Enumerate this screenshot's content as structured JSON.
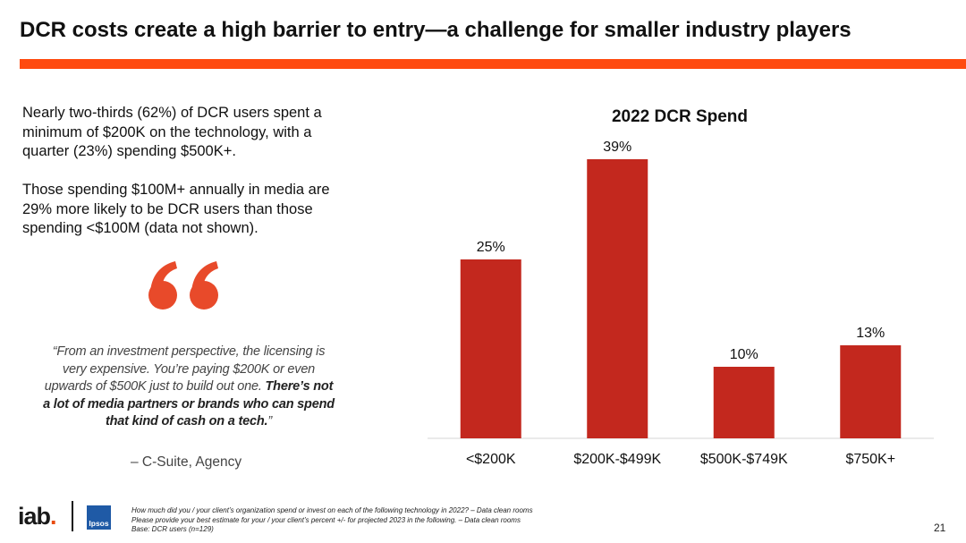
{
  "header": {
    "title": "DCR costs create a high barrier to entry—a challenge for smaller industry players"
  },
  "colors": {
    "accent": "#FF4A0F",
    "bar": "#C3281E",
    "quote_mark": "#E84A2A"
  },
  "left": {
    "paragraph1": "Nearly two-thirds (62%) of DCR users spent a minimum  of $200K on the technology, with a quarter (23%) spending  $500K+.",
    "paragraph2": "Those spending $100M+ annually in media are 29% more likely to be DCR users than those spending <$100M (data not shown).",
    "quote_icon": "quote-mark-icon",
    "quote_part1": "“From an investment perspective, the licensing is very expensive. You’re paying $200K or even upwards of $500K just to build out one. ",
    "quote_part2": "There’s not a lot of media partners or brands who can spend that kind of cash on a tech.",
    "quote_close": "”",
    "attribution": "– C-Suite, Agency"
  },
  "chart_data": {
    "type": "bar",
    "title": "2022 DCR Spend",
    "categories": [
      "<$200K",
      "$200K-$499K",
      "$500K-$749K",
      "$750K+"
    ],
    "values": [
      25,
      39,
      10,
      13
    ],
    "data_labels": [
      "25%",
      "39%",
      "10%",
      "13%"
    ],
    "ylim": [
      0,
      40
    ],
    "grid": false,
    "legend": "none"
  },
  "footer": {
    "logo_iab": "iab",
    "logo_iab_dot": ".",
    "logo_ipsos": "Ipsos",
    "footnote_lines": [
      "How much did you / your client’s organization spend or invest on each of the following technology in 2022? – Data clean rooms",
      "Please provide your best estimate for your / your client’s percent +/- for projected 2023 in the following. – Data clean rooms",
      "Base: DCR users (n=129)"
    ],
    "page_number": "21"
  }
}
